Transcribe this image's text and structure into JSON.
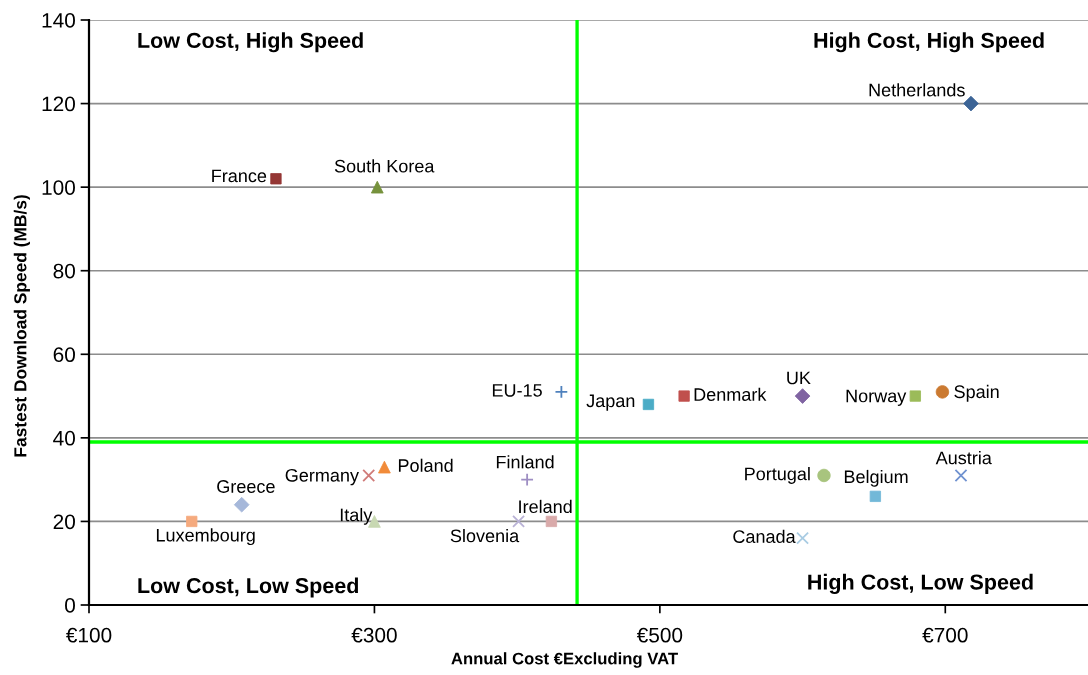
{
  "chart_data": {
    "type": "scatter",
    "xlabel": "Annual Cost €Excluding VAT",
    "ylabel": "Fastest Download Speed (MB/s)",
    "annotations": [
      "Low Cost, High Speed",
      "High Cost, High Speed",
      "Low Cost, Low Speed",
      "High Cost, Low Speed"
    ],
    "xlim": [
      100,
      800
    ],
    "xticks": [
      {
        "value": 100,
        "label": "€100"
      },
      {
        "value": 300,
        "label": "€300"
      },
      {
        "value": 500,
        "label": "€500"
      },
      {
        "value": 700,
        "label": "€700"
      }
    ],
    "ylim": [
      0,
      140
    ],
    "yticks": [
      0,
      20,
      40,
      60,
      80,
      100,
      120,
      140
    ],
    "grid": "y",
    "ref_lines": [
      {
        "axis": "x",
        "value": 442,
        "color": "#00ff00"
      },
      {
        "axis": "y",
        "value": 39,
        "color": "#00ff00"
      }
    ],
    "series": [
      {
        "name": "Netherlands",
        "color": "#3c6496",
        "marker": "diamond",
        "x": [
          718
        ],
        "values": [
          120
        ]
      },
      {
        "name": "France",
        "color": "#953735",
        "marker": "square",
        "x": [
          231
        ],
        "values": [
          102
        ]
      },
      {
        "name": "South Korea",
        "color": "#76923c",
        "marker": "triangle",
        "x": [
          302
        ],
        "values": [
          100
        ]
      },
      {
        "name": "EU-15",
        "color": "#4f81bd",
        "marker": "plus",
        "x": [
          431
        ],
        "values": [
          51
        ]
      },
      {
        "name": "Japan",
        "color": "#4bacc6",
        "marker": "square",
        "x": [
          492
        ],
        "values": [
          48
        ]
      },
      {
        "name": "Denmark",
        "color": "#c0504d",
        "marker": "square",
        "x": [
          517
        ],
        "values": [
          50
        ]
      },
      {
        "name": "UK",
        "color": "#8064a2",
        "marker": "diamond",
        "x": [
          600
        ],
        "values": [
          50
        ]
      },
      {
        "name": "Norway",
        "color": "#9bbb59",
        "marker": "square",
        "x": [
          679
        ],
        "values": [
          50
        ]
      },
      {
        "name": "Spain",
        "color": "#cb7a31",
        "marker": "circle",
        "x": [
          698
        ],
        "values": [
          51
        ]
      },
      {
        "name": "Portugal",
        "color": "#a8c47e",
        "marker": "circle",
        "x": [
          615
        ],
        "values": [
          31
        ]
      },
      {
        "name": "Belgium",
        "color": "#72b8d8",
        "marker": "square",
        "x": [
          651
        ],
        "values": [
          26
        ]
      },
      {
        "name": "Austria",
        "color": "#7092d0",
        "marker": "cross",
        "x": [
          711
        ],
        "values": [
          31
        ]
      },
      {
        "name": "Canada",
        "color": "#a9cce3",
        "marker": "cross",
        "x": [
          600
        ],
        "values": [
          16
        ]
      },
      {
        "name": "Luxembourg",
        "color": "#f5aa7e",
        "marker": "square",
        "x": [
          172
        ],
        "values": [
          20
        ]
      },
      {
        "name": "Greece",
        "color": "#a6b8da",
        "marker": "diamond",
        "x": [
          207
        ],
        "values": [
          24
        ]
      },
      {
        "name": "Germany",
        "color": "#d07b79",
        "marker": "cross",
        "x": [
          296
        ],
        "values": [
          31
        ]
      },
      {
        "name": "Poland",
        "color": "#f18b3a",
        "marker": "triangle",
        "x": [
          307
        ],
        "values": [
          33
        ]
      },
      {
        "name": "Italy",
        "color": "#c8d8b2",
        "marker": "triangle",
        "x": [
          300
        ],
        "values": [
          20
        ]
      },
      {
        "name": "Finland",
        "color": "#9e8ec3",
        "marker": "plus",
        "x": [
          407
        ],
        "values": [
          30
        ]
      },
      {
        "name": "Slovenia",
        "color": "#b9b2d6",
        "marker": "cross",
        "x": [
          401
        ],
        "values": [
          20
        ]
      },
      {
        "name": "Ireland",
        "color": "#d9aaaa",
        "marker": "square",
        "x": [
          424
        ],
        "values": [
          20
        ]
      }
    ]
  }
}
